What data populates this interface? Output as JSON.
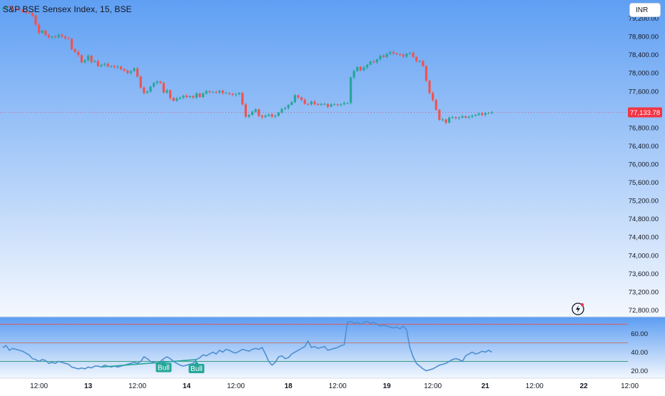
{
  "header": {
    "title": "S&P BSE Sensex Index, 15, BSE",
    "currency": "INR"
  },
  "colors": {
    "up": "#26a69a",
    "down": "#ef5350",
    "rsi_line": "#4f8fd0",
    "rsi_upper": "#e0585a",
    "rsi_mid": "#b87a7a",
    "rsi_lower": "#3aa07a",
    "divergence": "#26a69a",
    "price_label_bg": "#f23645",
    "bg_top": "#5f9ff3",
    "bg_bottom": "#f4f8fe"
  },
  "chart_data": [
    {
      "type": "candlestick",
      "title": "S&P BSE Sensex Index, 15, BSE",
      "y_ticks": [
        79200,
        78800,
        78400,
        78000,
        77600,
        77200,
        76800,
        76400,
        76000,
        75600,
        75200,
        74800,
        74400,
        74000,
        73600,
        73200,
        72800
      ],
      "y_tick_labels": [
        "79,200.00",
        "78,800.00",
        "78,400.00",
        "78,000.00",
        "77,600.00",
        "77,200.00",
        "76,800.00",
        "76,400.00",
        "76,000.00",
        "75,600.00",
        "75,200.00",
        "74,800.00",
        "74,400.00",
        "74,000.00",
        "73,600.00",
        "73,200.00",
        "72,800.00"
      ],
      "ylim": [
        72650,
        79600
      ],
      "last_price": 77133.78,
      "last_price_label": "77,133.78",
      "candle_count": 150,
      "closes": [
        79420,
        79460,
        79450,
        79410,
        79400,
        79380,
        79350,
        79330,
        79310,
        79260,
        79060,
        78880,
        78930,
        78830,
        78780,
        78800,
        78780,
        78840,
        78800,
        78760,
        78750,
        78520,
        78460,
        78390,
        78230,
        78280,
        78380,
        78240,
        78260,
        78150,
        78180,
        78200,
        78140,
        78150,
        78130,
        78140,
        78080,
        78050,
        78000,
        78040,
        78100,
        77920,
        77680,
        77560,
        77590,
        77700,
        77780,
        77810,
        77780,
        77570,
        77620,
        77450,
        77390,
        77440,
        77460,
        77500,
        77470,
        77490,
        77460,
        77550,
        77470,
        77550,
        77600,
        77580,
        77580,
        77570,
        77610,
        77560,
        77560,
        77540,
        77520,
        77530,
        77560,
        77310,
        77040,
        77080,
        77150,
        77200,
        77060,
        77030,
        77060,
        77090,
        77040,
        77060,
        77130,
        77210,
        77230,
        77300,
        77360,
        77510,
        77460,
        77410,
        77320,
        77310,
        77370,
        77320,
        77300,
        77320,
        77320,
        77260,
        77310,
        77310,
        77300,
        77310,
        77340,
        77340,
        77900,
        78040,
        78130,
        78060,
        78120,
        78180,
        78250,
        78230,
        78300,
        78380,
        78350,
        78420,
        78460,
        78430,
        78410,
        78400,
        78360,
        78420,
        78440,
        78350,
        78260,
        78260,
        78150,
        77830,
        77560,
        77410,
        77190,
        76970,
        76980,
        76910,
        77020,
        77030,
        77010,
        77020,
        77050,
        77020,
        77040,
        77060,
        77080,
        77110,
        77080,
        77120,
        77120,
        77133.78
      ]
    },
    {
      "type": "line",
      "series": [
        {
          "values": [
            45,
            47,
            42,
            44,
            43,
            42,
            41,
            39,
            37,
            33,
            32,
            30,
            32,
            31,
            28,
            29,
            28,
            30,
            29,
            28,
            27,
            24,
            23,
            22,
            23,
            22,
            24,
            23,
            25,
            25,
            24,
            26,
            25,
            24,
            25,
            24,
            25,
            26,
            27,
            28,
            29,
            28,
            30,
            35,
            33,
            30,
            29,
            28,
            30,
            33,
            35,
            33,
            30,
            28,
            26,
            25,
            26,
            27,
            28,
            32,
            34,
            37,
            36,
            38,
            40,
            38,
            42,
            40,
            43,
            42,
            40,
            39,
            41,
            43,
            42,
            41,
            43,
            44,
            43,
            45,
            38,
            30,
            26,
            29,
            35,
            36,
            33,
            34,
            38,
            40,
            42,
            44,
            46,
            52,
            45,
            46,
            44,
            45,
            46,
            42,
            43,
            44,
            45,
            47,
            48,
            72,
            73,
            71,
            72,
            70,
            72,
            73,
            71,
            72,
            70,
            68,
            69,
            68,
            67,
            66,
            67,
            65,
            68,
            64,
            45,
            35,
            28,
            25,
            22,
            20,
            21,
            22,
            24,
            26,
            27,
            28,
            30,
            32,
            33,
            32,
            30,
            36,
            38,
            40,
            38,
            39,
            41,
            40,
            42,
            40
          ]
        }
      ],
      "y_ticks": [
        20,
        40,
        60
      ],
      "y_tick_labels": [
        "20.00",
        "40.00",
        "60.00"
      ],
      "ylim": [
        12,
        78
      ],
      "levels": [
        70,
        50,
        30
      ],
      "annotations": [
        {
          "label": "Bull",
          "index": 49
        },
        {
          "label": "Bull",
          "index": 59
        }
      ],
      "divergence": {
        "from_index": 30,
        "to_index": 59
      }
    }
  ],
  "x_axis": {
    "ticks": [
      {
        "label": "12:00",
        "index": 11,
        "bold": false
      },
      {
        "label": "13",
        "index": 26,
        "bold": true
      },
      {
        "label": "12:00",
        "index": 41,
        "bold": false
      },
      {
        "label": "14",
        "index": 56,
        "bold": true
      },
      {
        "label": "12:00",
        "index": 71,
        "bold": false
      },
      {
        "label": "18",
        "index": 87,
        "bold": true
      },
      {
        "label": "12:00",
        "index": 102,
        "bold": false
      },
      {
        "label": "19",
        "index": 117,
        "bold": true
      },
      {
        "label": "12:00",
        "index": 131,
        "bold": false
      },
      {
        "label": "21",
        "index": 147,
        "bold": true
      },
      {
        "label": "12:00",
        "index": 162,
        "bold": false
      },
      {
        "label": "22",
        "index": 177,
        "bold": true
      },
      {
        "label": "12:00",
        "index": 191,
        "bold": false
      }
    ]
  }
}
